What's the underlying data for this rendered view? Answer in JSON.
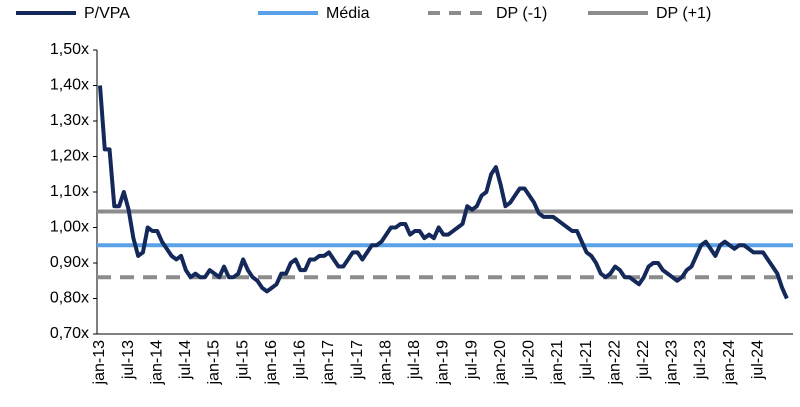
{
  "chart_data": {
    "type": "line",
    "categories": [
      "jan-13",
      null,
      null,
      null,
      null,
      null,
      "jul-13",
      null,
      null,
      null,
      null,
      null,
      "jan-14",
      null,
      null,
      null,
      null,
      null,
      "jul-14",
      null,
      null,
      null,
      null,
      null,
      "jan-15",
      null,
      null,
      null,
      null,
      null,
      "jul-15",
      null,
      null,
      null,
      null,
      null,
      "jan-16",
      null,
      null,
      null,
      null,
      null,
      "jul-16",
      null,
      null,
      null,
      null,
      null,
      "jan-17",
      null,
      null,
      null,
      null,
      null,
      "jul-17",
      null,
      null,
      null,
      null,
      null,
      "jan-18",
      null,
      null,
      null,
      null,
      null,
      "jul-18",
      null,
      null,
      null,
      null,
      null,
      "jan-19",
      null,
      null,
      null,
      null,
      null,
      "jul-19",
      null,
      null,
      null,
      null,
      null,
      "jan-20",
      null,
      null,
      null,
      null,
      null,
      "jul-20",
      null,
      null,
      null,
      null,
      null,
      "jan-21",
      null,
      null,
      null,
      null,
      null,
      "jul-21",
      null,
      null,
      null,
      null,
      null,
      "jan-22",
      null,
      null,
      null,
      null,
      null,
      "jul-22",
      null,
      null,
      null,
      null,
      null,
      "jan-23",
      null,
      null,
      null,
      null,
      null,
      "jul-23",
      null,
      null,
      null,
      null,
      null,
      "jan-24",
      null,
      null,
      null,
      null,
      null,
      "jul-24",
      null,
      null,
      null,
      null,
      null,
      null
    ],
    "series": [
      {
        "name": "P/VPA",
        "color": "#14285a",
        "values": [
          1.4,
          1.22,
          1.22,
          1.06,
          1.06,
          1.1,
          1.05,
          0.97,
          0.92,
          0.93,
          1.0,
          0.99,
          0.99,
          0.96,
          0.94,
          0.92,
          0.91,
          0.92,
          0.88,
          0.86,
          0.87,
          0.86,
          0.86,
          0.88,
          0.87,
          0.86,
          0.89,
          0.86,
          0.86,
          0.87,
          0.91,
          0.88,
          0.86,
          0.85,
          0.83,
          0.82,
          0.83,
          0.84,
          0.87,
          0.87,
          0.9,
          0.91,
          0.88,
          0.88,
          0.91,
          0.91,
          0.92,
          0.92,
          0.93,
          0.91,
          0.89,
          0.89,
          0.91,
          0.93,
          0.93,
          0.91,
          0.93,
          0.95,
          0.95,
          0.96,
          0.98,
          1.0,
          1.0,
          1.01,
          1.01,
          0.98,
          0.99,
          0.99,
          0.97,
          0.98,
          0.97,
          1.0,
          0.98,
          0.98,
          0.99,
          1.0,
          1.01,
          1.06,
          1.05,
          1.06,
          1.09,
          1.1,
          1.15,
          1.17,
          1.12,
          1.06,
          1.07,
          1.09,
          1.11,
          1.11,
          1.09,
          1.07,
          1.04,
          1.03,
          1.03,
          1.03,
          1.02,
          1.01,
          1.0,
          0.99,
          0.99,
          0.96,
          0.93,
          0.92,
          0.9,
          0.87,
          0.86,
          0.87,
          0.89,
          0.88,
          0.86,
          0.86,
          0.85,
          0.84,
          0.86,
          0.89,
          0.9,
          0.9,
          0.88,
          0.87,
          0.86,
          0.85,
          0.86,
          0.88,
          0.89,
          0.92,
          0.95,
          0.96,
          0.94,
          0.92,
          0.95,
          0.96,
          0.95,
          0.94,
          0.95,
          0.95,
          0.94,
          0.93,
          0.93,
          0.93,
          0.91,
          0.89,
          0.87,
          0.83,
          0.8
        ]
      },
      {
        "name": "Média",
        "color": "#5aa2e8",
        "value": 0.95
      },
      {
        "name": "DP (-1)",
        "color": "#8c8c8c",
        "value": 0.86,
        "dashed": true
      },
      {
        "name": "DP (+1)",
        "color": "#8c8c8c",
        "value": 1.045
      }
    ],
    "ylim": [
      0.7,
      1.5
    ],
    "yticks": [
      {
        "value": 0.7,
        "label": "0,70x"
      },
      {
        "value": 0.8,
        "label": "0,80x"
      },
      {
        "value": 0.9,
        "label": "0,90x"
      },
      {
        "value": 1.0,
        "label": "1,00x"
      },
      {
        "value": 1.1,
        "label": "1,10x"
      },
      {
        "value": 1.2,
        "label": "1,20x"
      },
      {
        "value": 1.3,
        "label": "1,30x"
      },
      {
        "value": 1.4,
        "label": "1,40x"
      },
      {
        "value": 1.5,
        "label": "1,50x"
      }
    ],
    "legend": "top"
  }
}
